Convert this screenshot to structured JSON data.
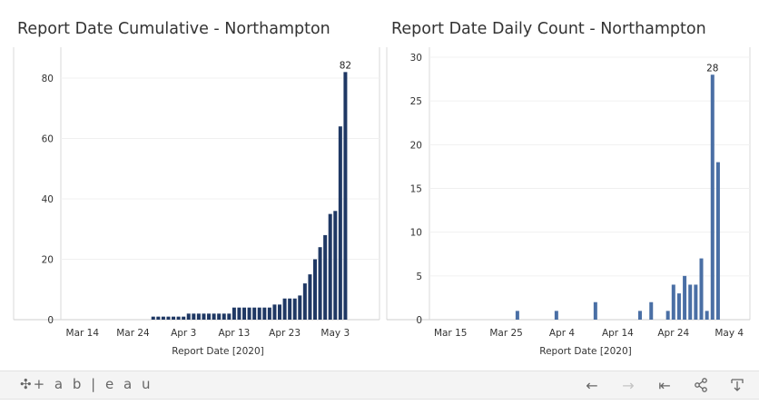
{
  "charts": {
    "left": {
      "title": "Report Date Cumulative - Northampton",
      "xlabel": "Report Date [2020]",
      "peak_label": "82"
    },
    "right": {
      "title": "Report Date Daily Count - Northampton",
      "xlabel": "Report Date [2020]",
      "peak_label": "28"
    }
  },
  "chart_data": [
    {
      "type": "bar",
      "title": "Report Date Cumulative - Northampton",
      "xlabel": "Report Date [2020]",
      "ylabel": "",
      "ylim": [
        0,
        90
      ],
      "yticks": [
        0,
        20,
        40,
        60,
        80
      ],
      "x_day_range": [
        0,
        51
      ],
      "x_ticks": [
        {
          "day": 4,
          "label": "Mar 14"
        },
        {
          "day": 14,
          "label": "Mar 24"
        },
        {
          "day": 24,
          "label": "Apr 3"
        },
        {
          "day": 34,
          "label": "Apr 13"
        },
        {
          "day": 44,
          "label": "Apr 23"
        },
        {
          "day": 54,
          "label": "May 3"
        }
      ],
      "start_date": "Mar 10",
      "values": [
        0,
        0,
        0,
        0,
        0,
        0,
        0,
        0,
        0,
        0,
        0,
        0,
        0,
        0,
        0,
        0,
        0,
        0,
        1,
        1,
        1,
        1,
        1,
        1,
        1,
        2,
        2,
        2,
        2,
        2,
        2,
        2,
        2,
        2,
        4,
        4,
        4,
        4,
        4,
        4,
        4,
        4,
        5,
        5,
        7,
        7,
        7,
        8,
        12,
        15,
        20,
        24,
        28,
        35,
        36,
        64,
        82
      ],
      "labels": {
        "56": "82"
      },
      "color": "#1f3864"
    },
    {
      "type": "bar",
      "title": "Report Date Daily Count - Northampton",
      "xlabel": "Report Date [2020]",
      "ylabel": "",
      "ylim": [
        0,
        30
      ],
      "yticks": [
        0,
        5,
        10,
        15,
        20,
        25,
        30
      ],
      "x_ticks": [
        {
          "day": 5,
          "label": "Mar 15"
        },
        {
          "day": 15,
          "label": "Mar 25"
        },
        {
          "day": 25,
          "label": "Apr 4"
        },
        {
          "day": 35,
          "label": "Apr 14"
        },
        {
          "day": 45,
          "label": "Apr 24"
        },
        {
          "day": 55,
          "label": "May 4"
        }
      ],
      "start_date": "Mar 10",
      "values": [
        0,
        0,
        0,
        0,
        0,
        0,
        0,
        0,
        0,
        0,
        0,
        0,
        0,
        0,
        0,
        0,
        0,
        1,
        0,
        0,
        0,
        0,
        0,
        0,
        1,
        0,
        0,
        0,
        0,
        0,
        0,
        2,
        0,
        0,
        0,
        0,
        0,
        0,
        0,
        1,
        0,
        2,
        0,
        0,
        1,
        4,
        3,
        5,
        4,
        4,
        7,
        1,
        28,
        18
      ],
      "labels": {
        "52": "28"
      },
      "color": "#4a6fa5"
    }
  ],
  "footer": {
    "logo_text": "+ a b | e a u",
    "icons": [
      "undo-icon",
      "redo-icon",
      "revert-icon",
      "share-icon",
      "download-icon"
    ]
  }
}
